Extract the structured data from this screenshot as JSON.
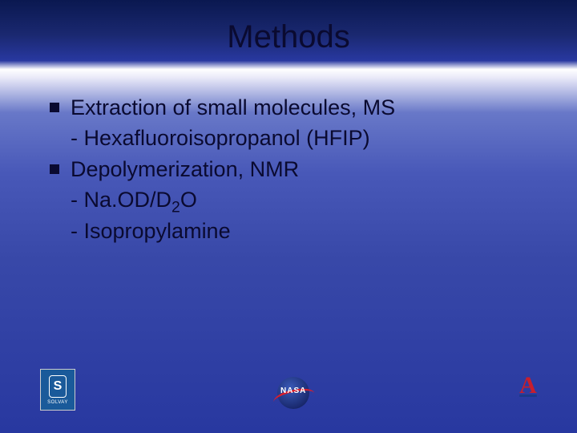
{
  "title": "Methods",
  "bullets": [
    {
      "text": "Extraction of small molecules, MS",
      "subs": [
        {
          "prefix": "- ",
          "text": "Hexafluoroisopropanol (HFIP)"
        }
      ]
    },
    {
      "text": "Depolymerization, NMR",
      "subs": [
        {
          "prefix": "- ",
          "text_html": "Na.OD/D<sub>2</sub>O",
          "text_plain": "Na.OD/D2O"
        },
        {
          "prefix": "- ",
          "text": "Isopropylamine"
        }
      ]
    }
  ],
  "logos": {
    "left": {
      "label": "SOLVAY",
      "glyph": "S"
    },
    "center": {
      "label": "NASA"
    },
    "right": {
      "letter": "A"
    }
  },
  "style": {
    "slide_width": 720,
    "slide_height": 540,
    "title_fontsize": 40,
    "body_fontsize": 27,
    "text_color": "#0a0a30",
    "bullet_marker_color": "#0a0a30",
    "gradient_stops": [
      "#0a1850",
      "#1a2870",
      "#2838a0",
      "#ffffff",
      "#e8e8f8",
      "#6878c8",
      "#4858b8",
      "#3848a8",
      "#2838a0"
    ],
    "solvay_bg": "#1a5a9a",
    "nasa_swoosh": "#d81e2c",
    "az_color": "#c81e2c",
    "az_underline": "#1a3a8a"
  }
}
